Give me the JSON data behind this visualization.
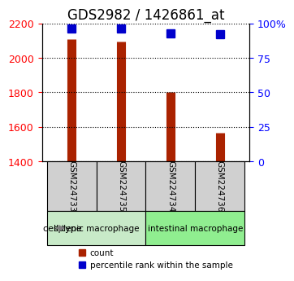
{
  "title": "GDS2982 / 1426861_at",
  "samples": [
    "GSM224733",
    "GSM224735",
    "GSM224734",
    "GSM224736"
  ],
  "count_values": [
    2110,
    2095,
    1800,
    1565
  ],
  "percentile_values": [
    96,
    96,
    93,
    92
  ],
  "ylim_left": [
    1400,
    2200
  ],
  "ylim_right": [
    0,
    100
  ],
  "yticks_left": [
    1400,
    1600,
    1800,
    2000,
    2200
  ],
  "yticks_right": [
    0,
    25,
    50,
    75,
    100
  ],
  "ytick_labels_right": [
    "0",
    "25",
    "50",
    "75",
    "100%"
  ],
  "bar_color": "#aa2200",
  "dot_color": "#0000cc",
  "groups": [
    {
      "label": "splenic macrophage",
      "samples": [
        0,
        1
      ],
      "color": "#c8eac8"
    },
    {
      "label": "intestinal macrophage",
      "samples": [
        2,
        3
      ],
      "color": "#90ee90"
    }
  ],
  "xlabel": "cell type",
  "legend_count_label": "count",
  "legend_pct_label": "percentile rank within the sample",
  "bar_width": 0.35,
  "x_positions": [
    0,
    1,
    2,
    3
  ],
  "sample_box_color": "#d0d0d0",
  "grid_color": "#000000",
  "title_fontsize": 12,
  "tick_fontsize": 9,
  "label_fontsize": 9,
  "arrow_color": "#808080"
}
